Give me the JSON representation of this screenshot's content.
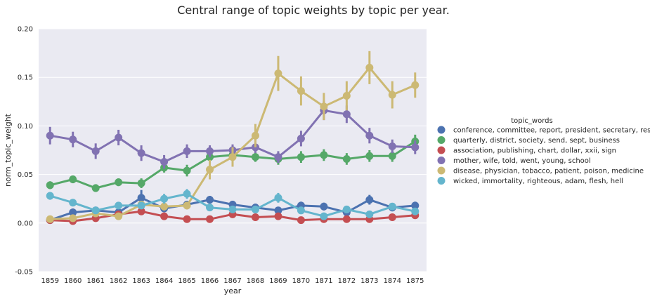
{
  "chart_data": {
    "type": "line",
    "title": "Central range of topic weights by topic per year.",
    "xlabel": "year",
    "ylabel": "norm_topic_weight",
    "categories": [
      "1859",
      "1860",
      "1861",
      "1862",
      "1863",
      "1864",
      "1865",
      "1866",
      "1867",
      "1868",
      "1869",
      "1870",
      "1871",
      "1872",
      "1873",
      "1874",
      "1875"
    ],
    "ylim": [
      -0.05,
      0.2
    ],
    "yticks": [
      "-0.05",
      "0.00",
      "0.05",
      "0.10",
      "0.15",
      "0.20"
    ],
    "grid": true,
    "legend": {
      "title": "topic_words",
      "placement": "right"
    },
    "series": [
      {
        "name": "conference, committee, report, president, secretary, resolved",
        "color": "#4c72b0",
        "values": [
          0.003,
          0.011,
          0.013,
          0.011,
          0.026,
          0.015,
          0.019,
          0.024,
          0.019,
          0.016,
          0.013,
          0.018,
          0.017,
          0.011,
          0.024,
          0.016,
          0.018
        ],
        "err": [
          0.002,
          0.004,
          0.003,
          0.003,
          0.008,
          0.003,
          0.004,
          0.004,
          0.004,
          0.004,
          0.003,
          0.004,
          0.004,
          0.003,
          0.005,
          0.004,
          0.004
        ]
      },
      {
        "name": "quarterly, district, society, send, sept, business",
        "color": "#55a868",
        "values": [
          0.039,
          0.045,
          0.036,
          0.042,
          0.041,
          0.057,
          0.054,
          0.068,
          0.07,
          0.068,
          0.066,
          0.068,
          0.07,
          0.066,
          0.069,
          0.069,
          0.084
        ],
        "err": [
          0.004,
          0.004,
          0.004,
          0.004,
          0.005,
          0.005,
          0.006,
          0.006,
          0.006,
          0.005,
          0.006,
          0.006,
          0.006,
          0.006,
          0.006,
          0.006,
          0.007
        ]
      },
      {
        "name": "association, publishing, chart, dollar, xxii, sign",
        "color": "#c44e52",
        "values": [
          0.003,
          0.002,
          0.005,
          0.009,
          0.012,
          0.007,
          0.004,
          0.004,
          0.009,
          0.006,
          0.007,
          0.003,
          0.004,
          0.004,
          0.004,
          0.006,
          0.008
        ],
        "err": [
          0.002,
          0.002,
          0.002,
          0.002,
          0.003,
          0.002,
          0.002,
          0.002,
          0.002,
          0.002,
          0.002,
          0.002,
          0.002,
          0.002,
          0.002,
          0.002,
          0.002
        ]
      },
      {
        "name": "mother, wife, told, went, young, school",
        "color": "#8172b2",
        "values": [
          0.09,
          0.086,
          0.074,
          0.088,
          0.072,
          0.063,
          0.074,
          0.074,
          0.075,
          0.078,
          0.068,
          0.087,
          0.116,
          0.112,
          0.09,
          0.079,
          0.078
        ],
        "err": [
          0.009,
          0.008,
          0.008,
          0.008,
          0.008,
          0.007,
          0.007,
          0.006,
          0.006,
          0.006,
          0.006,
          0.008,
          0.01,
          0.009,
          0.008,
          0.007,
          0.007
        ]
      },
      {
        "name": "disease, physician, tobacco, patient, poison, medicine",
        "color": "#ccb974",
        "values": [
          0.004,
          0.005,
          0.01,
          0.007,
          0.019,
          0.017,
          0.018,
          0.055,
          0.068,
          0.09,
          0.154,
          0.136,
          0.12,
          0.131,
          0.16,
          0.132,
          0.142
        ],
        "err": [
          0.002,
          0.002,
          0.003,
          0.002,
          0.004,
          0.004,
          0.004,
          0.01,
          0.01,
          0.012,
          0.018,
          0.015,
          0.014,
          0.015,
          0.017,
          0.014,
          0.013
        ]
      },
      {
        "name": "wicked, immortality, righteous, adam, flesh, hell",
        "color": "#64b5cd",
        "values": [
          0.028,
          0.021,
          0.013,
          0.018,
          0.018,
          0.025,
          0.03,
          0.016,
          0.014,
          0.014,
          0.026,
          0.013,
          0.007,
          0.014,
          0.009,
          0.017,
          0.012
        ],
        "err": [
          0.004,
          0.003,
          0.003,
          0.003,
          0.003,
          0.005,
          0.005,
          0.003,
          0.003,
          0.003,
          0.005,
          0.003,
          0.002,
          0.003,
          0.002,
          0.003,
          0.003
        ]
      }
    ]
  }
}
